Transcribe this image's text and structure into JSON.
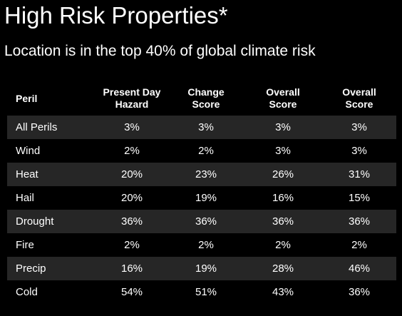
{
  "title": "High Risk Properties*",
  "subtitle": "Location is in the top 40% of global climate risk",
  "colors": {
    "background": "#000000",
    "text": "#ffffff",
    "row_shade": "#262626"
  },
  "table": {
    "headers": [
      "Peril",
      "Present Day Hazard",
      "Change Score",
      "Overall Score",
      "Overall Score"
    ],
    "rows": [
      [
        "All Perils",
        "3%",
        "3%",
        "3%",
        "3%"
      ],
      [
        "Wind",
        "2%",
        "2%",
        "3%",
        "3%"
      ],
      [
        "Heat",
        "20%",
        "23%",
        "26%",
        "31%"
      ],
      [
        "Hail",
        "20%",
        "19%",
        "16%",
        "15%"
      ],
      [
        "Drought",
        "36%",
        "36%",
        "36%",
        "36%"
      ],
      [
        "Fire",
        "2%",
        "2%",
        "2%",
        "2%"
      ],
      [
        "Precip",
        "16%",
        "19%",
        "28%",
        "46%"
      ],
      [
        "Cold",
        "54%",
        "51%",
        "43%",
        "36%"
      ]
    ]
  }
}
